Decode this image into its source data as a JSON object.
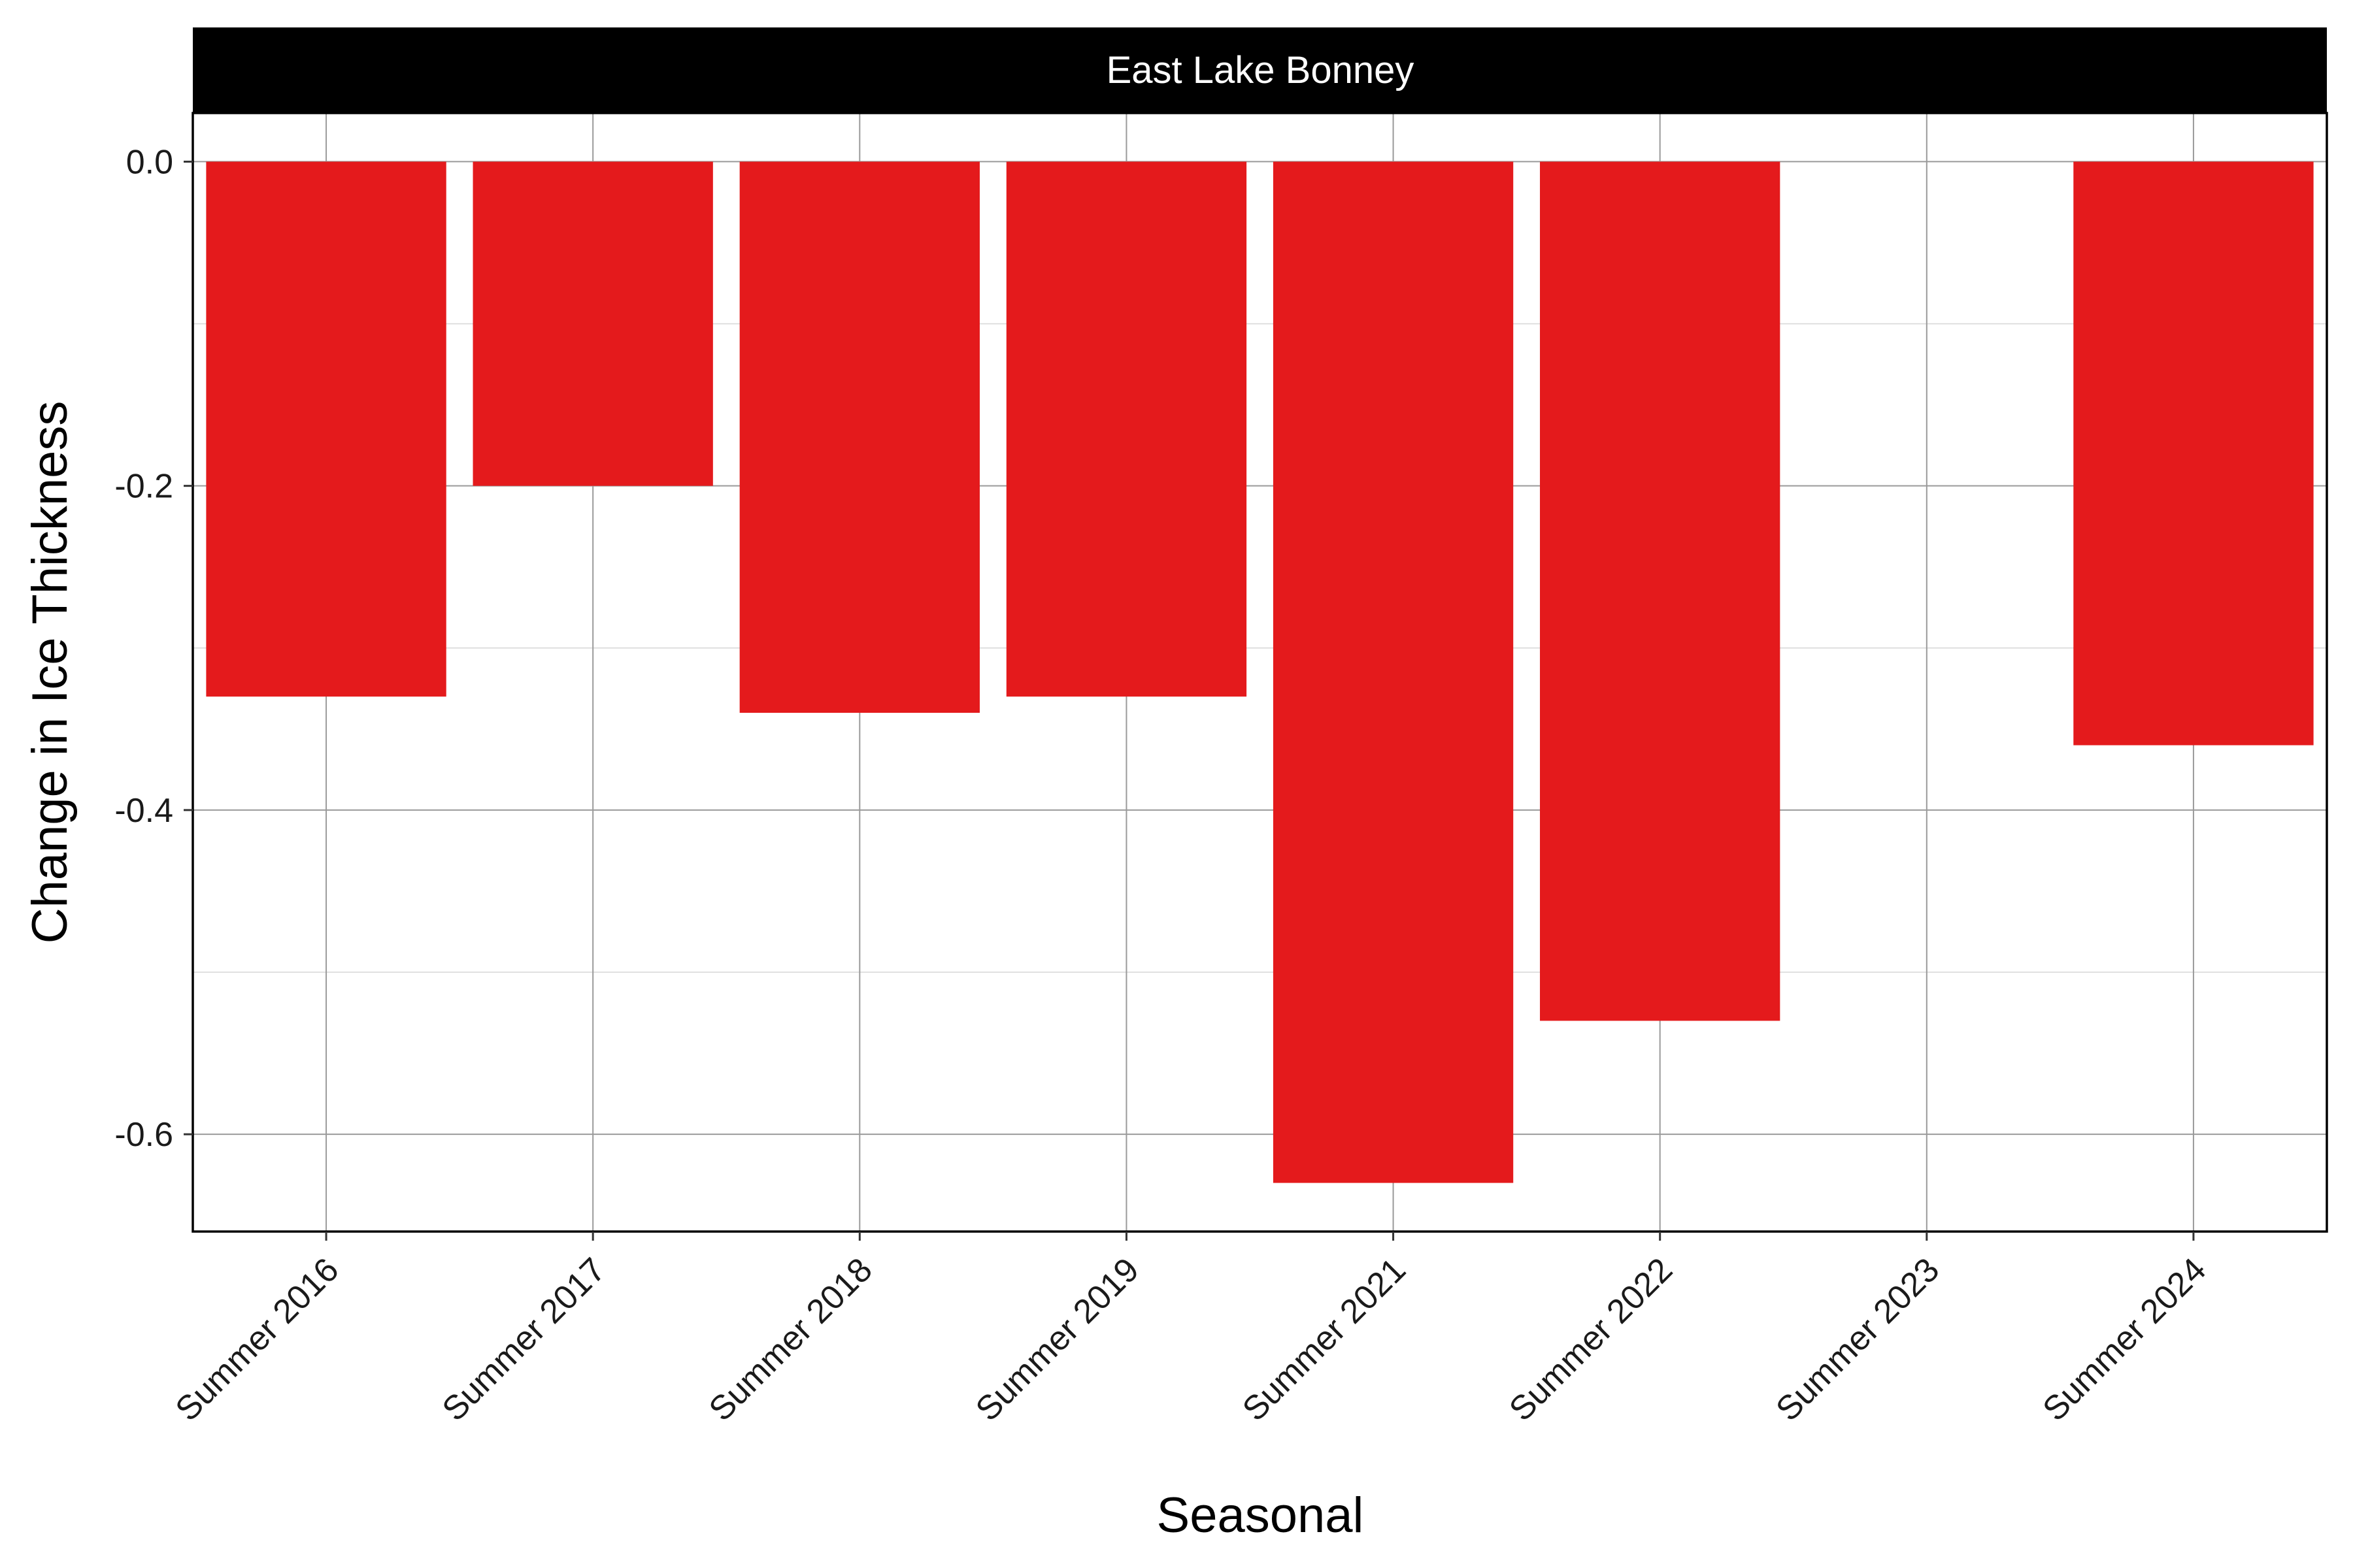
{
  "chart_data": {
    "type": "bar",
    "facet_label": "East Lake Bonney",
    "categories": [
      "Summer 2016",
      "Summer 2017",
      "Summer 2018",
      "Summer 2019",
      "Summer 2021",
      "Summer 2022",
      "Summer 2023",
      "Summer 2024"
    ],
    "values": [
      -0.33,
      -0.2,
      -0.34,
      -0.33,
      -0.63,
      -0.53,
      null,
      -0.36
    ],
    "xlabel": "Seasonal",
    "ylabel": "Change in Ice Thickness",
    "ylim": [
      -0.66,
      0.03
    ],
    "yticks": [
      0.0,
      -0.2,
      -0.4,
      -0.6
    ],
    "ytick_labels": [
      "0.0",
      "-0.2",
      "-0.4",
      "-0.6"
    ],
    "grid": true,
    "bar_color": "#e41a1c",
    "strip_color": "#000000"
  }
}
